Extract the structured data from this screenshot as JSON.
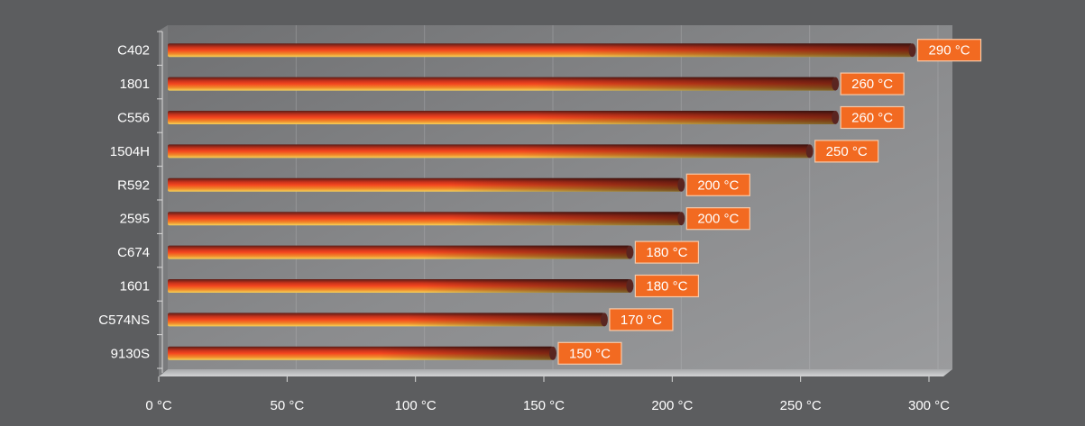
{
  "chart_data": {
    "type": "bar",
    "orientation": "horizontal",
    "categories": [
      "C402",
      "1801",
      "C556",
      "1504H",
      "R592",
      "2595",
      "C674",
      "1601",
      "C574NS",
      "9130S"
    ],
    "values": [
      290,
      260,
      260,
      250,
      200,
      200,
      180,
      180,
      170,
      150
    ],
    "value_labels": [
      "290 °C",
      "260 °C",
      "260 °C",
      "250 °C",
      "200 °C",
      "200 °C",
      "180 °C",
      "180 °C",
      "170 °C",
      "150 °C"
    ],
    "x_ticks": [
      0,
      50,
      100,
      150,
      200,
      250,
      300
    ],
    "x_tick_labels": [
      "0 °C",
      "50 °C",
      "100 °C",
      "150 °C",
      "200 °C",
      "250 °C",
      "300 °C"
    ],
    "xlim": [
      0,
      300
    ],
    "title": "",
    "xlabel": "",
    "ylabel": "",
    "grid": true,
    "legend": "none",
    "colors": {
      "background": "#5c5d5f",
      "plot_wall": "#8a8b8d",
      "bar_core": "#f0451f",
      "bar_dark": "#7a2a22",
      "bar_highlight": "#f7c24a",
      "label_fill": "#f26a21",
      "label_border": "#f7c9a8",
      "text": "#ffffff"
    }
  }
}
